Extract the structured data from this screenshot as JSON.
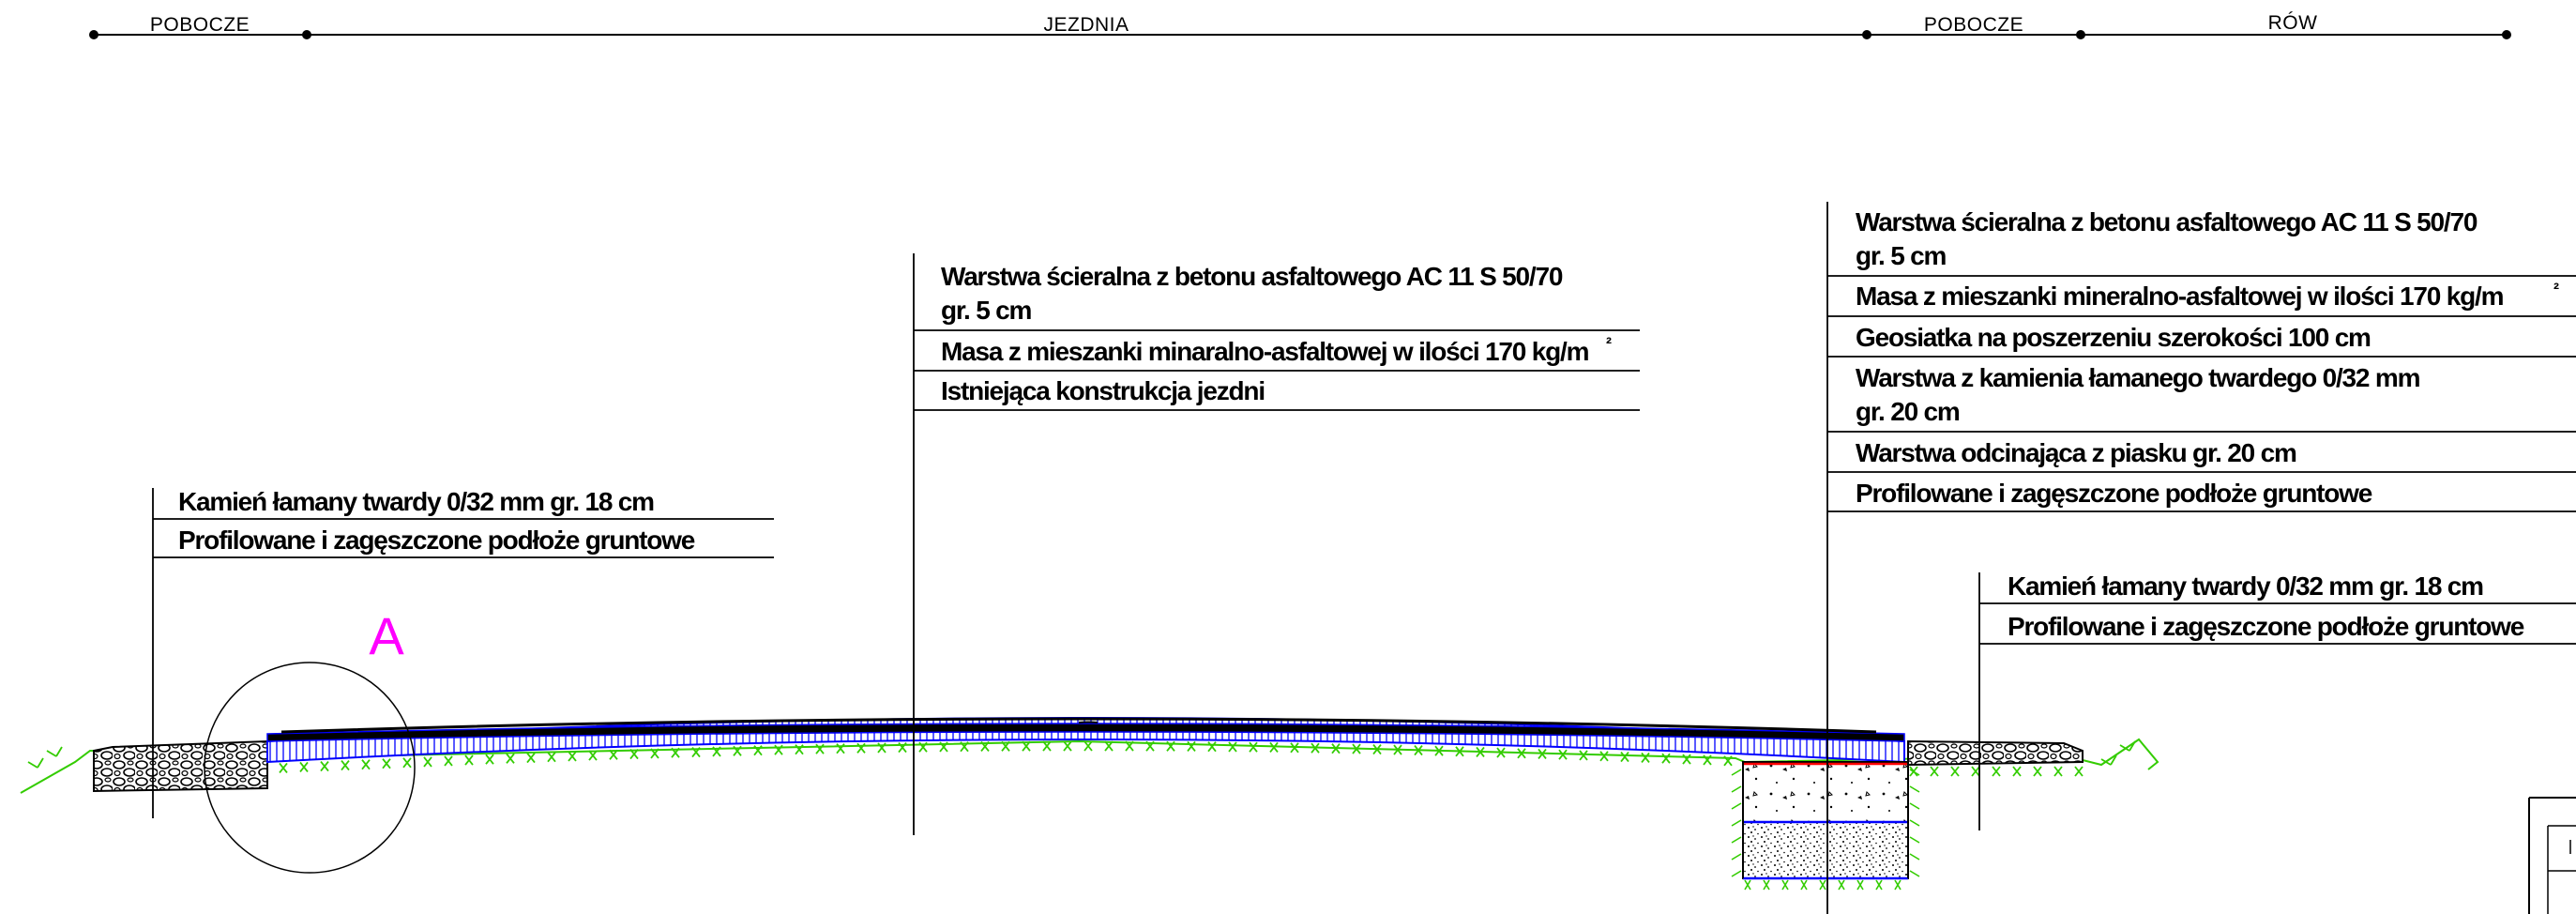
{
  "dimension_line": {
    "segments": [
      "POBOCZE",
      "JEZDNIA",
      "POBOCZE",
      "RÓW"
    ]
  },
  "callout_left": {
    "lines": [
      "Kamień łamany twardy 0/32 mm gr. 18 cm",
      "Profilowane i zagęszczone podłoże gruntowe"
    ]
  },
  "callout_center": {
    "lines": [
      "Warstwa ścieralna z betonu asfaltowego AC 11 S 50/70",
      "gr. 5 cm",
      "Masa z mieszanki minaralno-asfaltowej w ilości 170 kg/m",
      "²",
      "Istniejąca konstrukcja jezdni"
    ]
  },
  "callout_right": {
    "lines": [
      "Warstwa ścieralna z betonu asfaltowego AC 11 S 50/70",
      "gr. 5 cm",
      "Masa z mieszanki mineralno-asfaltowej w ilości 170 kg/m",
      "²",
      "Geosiatka na poszerzeniu szerokości 100 cm",
      "Warstwa z kamienia łamanego twardego 0/32 mm",
      "gr. 20 cm",
      "Warstwa odcinająca z piasku gr. 20 cm",
      "Profilowane i zagęszczone podłoże gruntowe"
    ]
  },
  "callout_right_shoulder": {
    "lines": [
      "Kamień łamany twardy 0/32 mm gr. 18 cm",
      "Profilowane i zagęszczone podłoże gruntowe"
    ]
  },
  "detail_marker": {
    "label": "A",
    "color": "#ff00ff"
  },
  "colors": {
    "asphalt_outline": "#0000ff",
    "soil_hatch": "#33cc00",
    "geogrid": "#ff0000"
  }
}
